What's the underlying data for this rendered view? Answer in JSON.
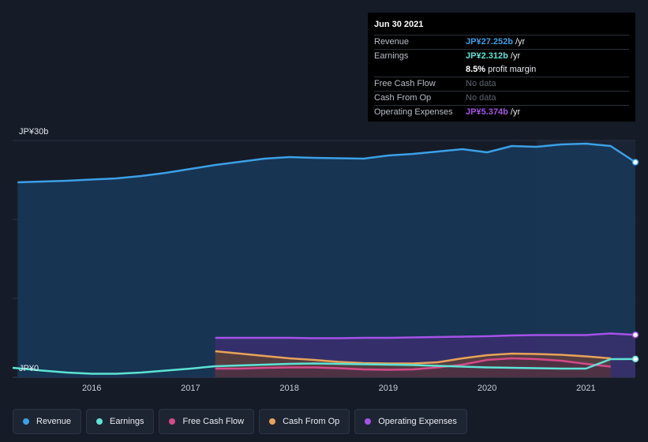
{
  "chart_data": {
    "type": "area",
    "y_top_label": "JP¥30b",
    "y_zero_label": "JP¥0",
    "ylim": [
      0,
      30
    ],
    "xlim": [
      2015.2,
      2021.5
    ],
    "x_ticks": [
      {
        "value": 2016,
        "label": "2016"
      },
      {
        "value": 2017,
        "label": "2017"
      },
      {
        "value": 2018,
        "label": "2018"
      },
      {
        "value": 2019,
        "label": "2019"
      },
      {
        "value": 2020,
        "label": "2020"
      },
      {
        "value": 2021,
        "label": "2021"
      }
    ],
    "forecast_start": 2020.5,
    "series": [
      {
        "name": "Revenue",
        "color": "#3ba0e6",
        "fill": "#17385a",
        "points": [
          [
            2015.25,
            24.7
          ],
          [
            2015.75,
            24.9
          ],
          [
            2016.25,
            25.2
          ],
          [
            2016.5,
            25.5
          ],
          [
            2016.75,
            25.9
          ],
          [
            2017.0,
            26.4
          ],
          [
            2017.25,
            26.9
          ],
          [
            2017.5,
            27.3
          ],
          [
            2017.75,
            27.7
          ],
          [
            2018.0,
            27.9
          ],
          [
            2018.25,
            27.8
          ],
          [
            2018.5,
            27.75
          ],
          [
            2018.75,
            27.7
          ],
          [
            2019.0,
            28.1
          ],
          [
            2019.25,
            28.3
          ],
          [
            2019.5,
            28.6
          ],
          [
            2019.75,
            28.9
          ],
          [
            2020.0,
            28.5
          ],
          [
            2020.25,
            29.3
          ],
          [
            2020.5,
            29.2
          ],
          [
            2020.75,
            29.5
          ],
          [
            2021.0,
            29.6
          ],
          [
            2021.25,
            29.3
          ],
          [
            2021.5,
            27.25
          ]
        ]
      },
      {
        "name": "Operating Expenses",
        "color": "#a552e8",
        "fill": "#3a2f6e",
        "points": [
          [
            2017.25,
            5.0
          ],
          [
            2017.5,
            5.0
          ],
          [
            2017.75,
            5.0
          ],
          [
            2018.0,
            5.0
          ],
          [
            2018.25,
            4.95
          ],
          [
            2018.5,
            4.95
          ],
          [
            2018.75,
            5.0
          ],
          [
            2019.0,
            5.0
          ],
          [
            2019.25,
            5.05
          ],
          [
            2019.5,
            5.1
          ],
          [
            2019.75,
            5.15
          ],
          [
            2020.0,
            5.2
          ],
          [
            2020.25,
            5.3
          ],
          [
            2020.5,
            5.35
          ],
          [
            2020.75,
            5.35
          ],
          [
            2021.0,
            5.35
          ],
          [
            2021.25,
            5.55
          ],
          [
            2021.5,
            5.374
          ]
        ]
      },
      {
        "name": "Cash From Op",
        "color": "#e8a35a",
        "fill": "#5a3f3a",
        "points": [
          [
            2017.25,
            3.3
          ],
          [
            2017.5,
            3.0
          ],
          [
            2017.75,
            2.7
          ],
          [
            2018.0,
            2.4
          ],
          [
            2018.25,
            2.2
          ],
          [
            2018.5,
            1.95
          ],
          [
            2018.75,
            1.8
          ],
          [
            2019.0,
            1.75
          ],
          [
            2019.25,
            1.75
          ],
          [
            2019.5,
            1.9
          ],
          [
            2019.75,
            2.4
          ],
          [
            2020.0,
            2.8
          ],
          [
            2020.25,
            3.0
          ],
          [
            2020.5,
            2.95
          ],
          [
            2020.75,
            2.85
          ],
          [
            2021.0,
            2.65
          ],
          [
            2021.25,
            2.4
          ]
        ]
      },
      {
        "name": "Free Cash Flow",
        "color": "#d44a8a",
        "fill": "#4d3045",
        "points": [
          [
            2017.25,
            1.1
          ],
          [
            2017.5,
            1.1
          ],
          [
            2017.75,
            1.2
          ],
          [
            2018.0,
            1.25
          ],
          [
            2018.25,
            1.25
          ],
          [
            2018.5,
            1.15
          ],
          [
            2018.75,
            1.0
          ],
          [
            2019.0,
            0.95
          ],
          [
            2019.25,
            1.0
          ],
          [
            2019.5,
            1.25
          ],
          [
            2019.75,
            1.6
          ],
          [
            2020.0,
            2.2
          ],
          [
            2020.25,
            2.4
          ],
          [
            2020.5,
            2.3
          ],
          [
            2020.75,
            2.1
          ],
          [
            2021.0,
            1.7
          ],
          [
            2021.25,
            1.35
          ]
        ]
      },
      {
        "name": "Earnings",
        "color": "#5de3d4",
        "fill": "none",
        "points": [
          [
            2015.2,
            1.2
          ],
          [
            2015.5,
            0.85
          ],
          [
            2015.75,
            0.6
          ],
          [
            2016.0,
            0.45
          ],
          [
            2016.25,
            0.45
          ],
          [
            2016.5,
            0.6
          ],
          [
            2016.75,
            0.85
          ],
          [
            2017.0,
            1.1
          ],
          [
            2017.25,
            1.4
          ],
          [
            2017.5,
            1.5
          ],
          [
            2017.75,
            1.6
          ],
          [
            2018.0,
            1.7
          ],
          [
            2018.25,
            1.75
          ],
          [
            2018.5,
            1.7
          ],
          [
            2018.75,
            1.65
          ],
          [
            2019.0,
            1.6
          ],
          [
            2019.25,
            1.55
          ],
          [
            2019.5,
            1.45
          ],
          [
            2019.75,
            1.35
          ],
          [
            2020.0,
            1.25
          ],
          [
            2020.25,
            1.2
          ],
          [
            2020.5,
            1.15
          ],
          [
            2020.75,
            1.1
          ],
          [
            2021.0,
            1.1
          ],
          [
            2021.25,
            2.3
          ],
          [
            2021.5,
            2.312
          ]
        ]
      }
    ]
  },
  "tooltip": {
    "date": "Jun 30 2021",
    "rows": [
      {
        "label": "Revenue",
        "value": "JP¥27.252b",
        "unit": " /yr",
        "color": "#3ba0e6"
      },
      {
        "label": "Earnings",
        "value": "JP¥2.312b",
        "unit": " /yr",
        "color": "#5de3d4"
      },
      {
        "label": "",
        "value": "8.5%",
        "unit": " profit margin",
        "color": "#ffffff"
      },
      {
        "label": "Free Cash Flow",
        "value": "No data",
        "unit": "",
        "color": "#5d6470"
      },
      {
        "label": "Cash From Op",
        "value": "No data",
        "unit": "",
        "color": "#5d6470"
      },
      {
        "label": "Operating Expenses",
        "value": "JP¥5.374b",
        "unit": " /yr",
        "color": "#a552e8"
      }
    ]
  },
  "legend": [
    {
      "label": "Revenue",
      "color": "#3ba0e6"
    },
    {
      "label": "Earnings",
      "color": "#5de3d4"
    },
    {
      "label": "Free Cash Flow",
      "color": "#d44a8a"
    },
    {
      "label": "Cash From Op",
      "color": "#e8a35a"
    },
    {
      "label": "Operating Expenses",
      "color": "#a552e8"
    }
  ]
}
